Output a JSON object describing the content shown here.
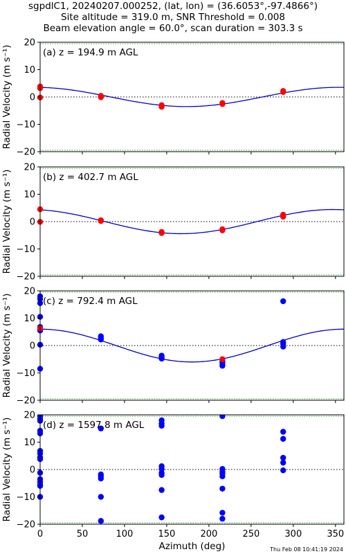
{
  "figure": {
    "title_lines": [
      "sgpdlC1, 20240207.000252, (lat, lon) = (36.6053°,-97.4866°)",
      "Site altitude = 319.0 m, SNR Threshold = 0.008",
      "Beam elevation angle = 60.0°, scan duration = 303.3 s"
    ],
    "footer": "Thu Feb 08 10:41:19 2024"
  },
  "chart_data": [
    {
      "type": "scatter",
      "panel_label": "(a) z = 194.9 m AGL",
      "ylabel": "Radial Velocity (m s⁻¹)",
      "xlabel": "",
      "xlim": [
        0,
        360
      ],
      "ylim": [
        -20,
        20
      ],
      "x_ticks": [
        0,
        50,
        100,
        150,
        200,
        250,
        300,
        350
      ],
      "y_ticks": [
        -20,
        -10,
        0,
        10,
        20
      ],
      "point_color": "#ff0000",
      "fit": {
        "u": -0.4,
        "v": 3.5,
        "w": 0.0
      },
      "points": [
        [
          0,
          3.8
        ],
        [
          0,
          3.2
        ],
        [
          0,
          -0.2
        ],
        [
          72,
          0.4
        ],
        [
          72,
          -0.1
        ],
        [
          144,
          -3.0
        ],
        [
          144,
          -3.6
        ],
        [
          216,
          -2.2
        ],
        [
          216,
          -2.6
        ],
        [
          288,
          2.2
        ],
        [
          288,
          1.8
        ]
      ]
    },
    {
      "type": "scatter",
      "panel_label": "(b) z = 402.7 m AGL",
      "ylabel": "Radial Velocity (m s⁻¹)",
      "xlabel": "",
      "xlim": [
        0,
        360
      ],
      "ylim": [
        -20,
        20
      ],
      "x_ticks": [
        0,
        50,
        100,
        150,
        200,
        250,
        300,
        350
      ],
      "y_ticks": [
        -20,
        -10,
        0,
        10,
        20
      ],
      "point_color": "#ff0000",
      "fit": {
        "u": -1.0,
        "v": 4.3,
        "w": 0.0
      },
      "points": [
        [
          0,
          4.5
        ],
        [
          0,
          -0.1
        ],
        [
          72,
          0.5
        ],
        [
          72,
          0.2
        ],
        [
          144,
          -3.8
        ],
        [
          144,
          -4.2
        ],
        [
          216,
          -2.8
        ],
        [
          216,
          -3.2
        ],
        [
          288,
          2.5
        ],
        [
          288,
          1.8
        ]
      ]
    },
    {
      "type": "scatter",
      "panel_label": "(c) z = 792.4 m AGL",
      "ylabel": "Radial Velocity (m s⁻¹)",
      "xlabel": "",
      "xlim": [
        0,
        360
      ],
      "ylim": [
        -20,
        20
      ],
      "x_ticks": [
        0,
        50,
        100,
        150,
        200,
        250,
        300,
        350
      ],
      "y_ticks": [
        -20,
        -10,
        0,
        10,
        20
      ],
      "point_color": "#0000ff",
      "highlight_color": "#ff0000",
      "fit": {
        "u": 0.0,
        "v": 6.0,
        "w": 0.0
      },
      "points": [
        [
          0,
          18
        ],
        [
          0,
          17
        ],
        [
          0,
          15.5
        ],
        [
          0,
          10.5
        ],
        [
          0,
          6.8
        ],
        [
          0,
          6.2
        ],
        [
          0,
          5.5
        ],
        [
          0,
          0.3
        ],
        [
          0,
          -8.5
        ],
        [
          72,
          3.4
        ],
        [
          72,
          2.8
        ],
        [
          72,
          2.2
        ],
        [
          144,
          -3.7
        ],
        [
          144,
          -4.2
        ],
        [
          144,
          -4.8
        ],
        [
          216,
          -5.5
        ],
        [
          216,
          -6.2
        ],
        [
          216,
          -7.0
        ],
        [
          216,
          -7.4
        ],
        [
          288,
          16.2
        ],
        [
          288,
          1.3
        ],
        [
          288,
          0.6
        ],
        [
          288,
          -0.4
        ]
      ],
      "highlight_points": [
        [
          0,
          6.3
        ],
        [
          216,
          -5.0
        ]
      ]
    },
    {
      "type": "scatter",
      "panel_label": "(d) z = 1597.8 m AGL",
      "ylabel": "Radial Velocity (m s⁻¹)",
      "xlabel": "Azimuth (deg)",
      "xlim": [
        0,
        360
      ],
      "ylim": [
        -20,
        20
      ],
      "x_ticks": [
        0,
        50,
        100,
        150,
        200,
        250,
        300,
        350
      ],
      "y_ticks": [
        -20,
        -10,
        0,
        10,
        20
      ],
      "point_color": "#0000ff",
      "points": [
        [
          0,
          19.5
        ],
        [
          0,
          18.5
        ],
        [
          0,
          17.8
        ],
        [
          0,
          14.2
        ],
        [
          0,
          13.2
        ],
        [
          0,
          6.8
        ],
        [
          0,
          5.8
        ],
        [
          0,
          4.5
        ],
        [
          0,
          3.8
        ],
        [
          0,
          -1.2
        ],
        [
          0,
          -3.5
        ],
        [
          0,
          -4.5
        ],
        [
          0,
          -5.5
        ],
        [
          0,
          -6.0
        ],
        [
          0,
          -10
        ],
        [
          72,
          15
        ],
        [
          72,
          -1.8
        ],
        [
          72,
          -2.5
        ],
        [
          72,
          -3.3
        ],
        [
          72,
          -10
        ],
        [
          72,
          -18.8
        ],
        [
          144,
          18
        ],
        [
          144,
          16.8
        ],
        [
          144,
          16
        ],
        [
          144,
          1.2
        ],
        [
          144,
          0.2
        ],
        [
          144,
          -1.2
        ],
        [
          144,
          -2
        ],
        [
          144,
          -7.5
        ],
        [
          144,
          -17.5
        ],
        [
          216,
          19.5
        ],
        [
          216,
          0.2
        ],
        [
          216,
          -0.8
        ],
        [
          216,
          -1.5
        ],
        [
          216,
          -2.5
        ],
        [
          216,
          -7
        ],
        [
          216,
          -15.8
        ],
        [
          216,
          -18
        ],
        [
          288,
          13.8
        ],
        [
          288,
          11.2
        ],
        [
          288,
          4.3
        ],
        [
          288,
          2.5
        ],
        [
          288,
          -0.3
        ]
      ]
    }
  ]
}
